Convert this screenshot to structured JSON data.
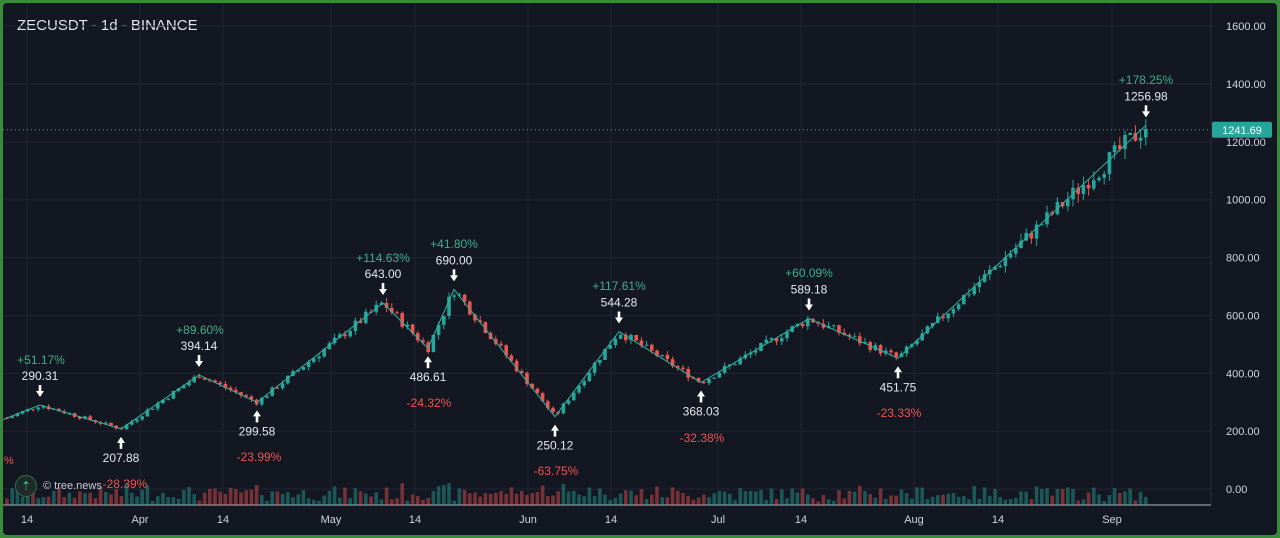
{
  "header": {
    "title": "ZECUSDT - 1d - BINANCE"
  },
  "watermark": {
    "text": "© tree.news",
    "icon": "double-chevron-up-icon"
  },
  "colors": {
    "up": "#26a69a",
    "down": "#ef5350",
    "bg": "#131722",
    "grid": "#1f2433",
    "axis_text": "#d1d4dc",
    "pos_pct": "#3fae8c",
    "neg_pct": "#ef5350",
    "zigzag": "#2fb39d"
  },
  "chart_data": {
    "type": "candlestick",
    "title": "ZECUSDT - 1d - BINANCE",
    "ylim": [
      -40,
      1660
    ],
    "y_ticks": [
      "1600.00",
      "1400.00",
      "1200.00",
      "1000.00",
      "800.00",
      "600.00",
      "400.00",
      "200.00",
      "0.00"
    ],
    "x_ticks": [
      "14",
      "Apr",
      "14",
      "May",
      "14",
      "Jun",
      "14",
      "Jul",
      "14",
      "Aug",
      "14",
      "Sep"
    ],
    "last_price": "1241.69",
    "grid": true,
    "pivots": [
      {
        "label": "290.31",
        "price": 290.31,
        "type": "high"
      },
      {
        "label": "207.88",
        "price": 207.88,
        "type": "low"
      },
      {
        "label": "394.14",
        "price": 394.14,
        "type": "high"
      },
      {
        "label": "299.58",
        "price": 299.58,
        "type": "low"
      },
      {
        "label": "643.00",
        "price": 643.0,
        "type": "high"
      },
      {
        "label": "486.61",
        "price": 486.61,
        "type": "low"
      },
      {
        "label": "690.00",
        "price": 690.0,
        "type": "high"
      },
      {
        "label": "250.12",
        "price": 250.12,
        "type": "low"
      },
      {
        "label": "544.28",
        "price": 544.28,
        "type": "high"
      },
      {
        "label": "368.03",
        "price": 368.03,
        "type": "low"
      },
      {
        "label": "589.18",
        "price": 589.18,
        "type": "high"
      },
      {
        "label": "451.75",
        "price": 451.75,
        "type": "low"
      },
      {
        "label": "1256.98",
        "price": 1256.98,
        "type": "high"
      }
    ],
    "swing_percentages": [
      {
        "label": "+51.17%",
        "sign": "pos"
      },
      {
        "label": "-28.39%",
        "sign": "neg"
      },
      {
        "label": "+89.60%",
        "sign": "pos"
      },
      {
        "label": "-23.99%",
        "sign": "neg"
      },
      {
        "label": "+114.63%",
        "sign": "pos"
      },
      {
        "label": "-24.32%",
        "sign": "neg"
      },
      {
        "label": "+41.80%",
        "sign": "pos"
      },
      {
        "label": "-63.75%",
        "sign": "neg"
      },
      {
        "label": "+117.61%",
        "sign": "pos"
      },
      {
        "label": "-32.38%",
        "sign": "neg"
      },
      {
        "label": "+60.09%",
        "sign": "pos"
      },
      {
        "label": "-23.33%",
        "sign": "neg"
      },
      {
        "label": "+178.25%",
        "sign": "pos"
      }
    ],
    "left_edge_partial_label": "%"
  }
}
